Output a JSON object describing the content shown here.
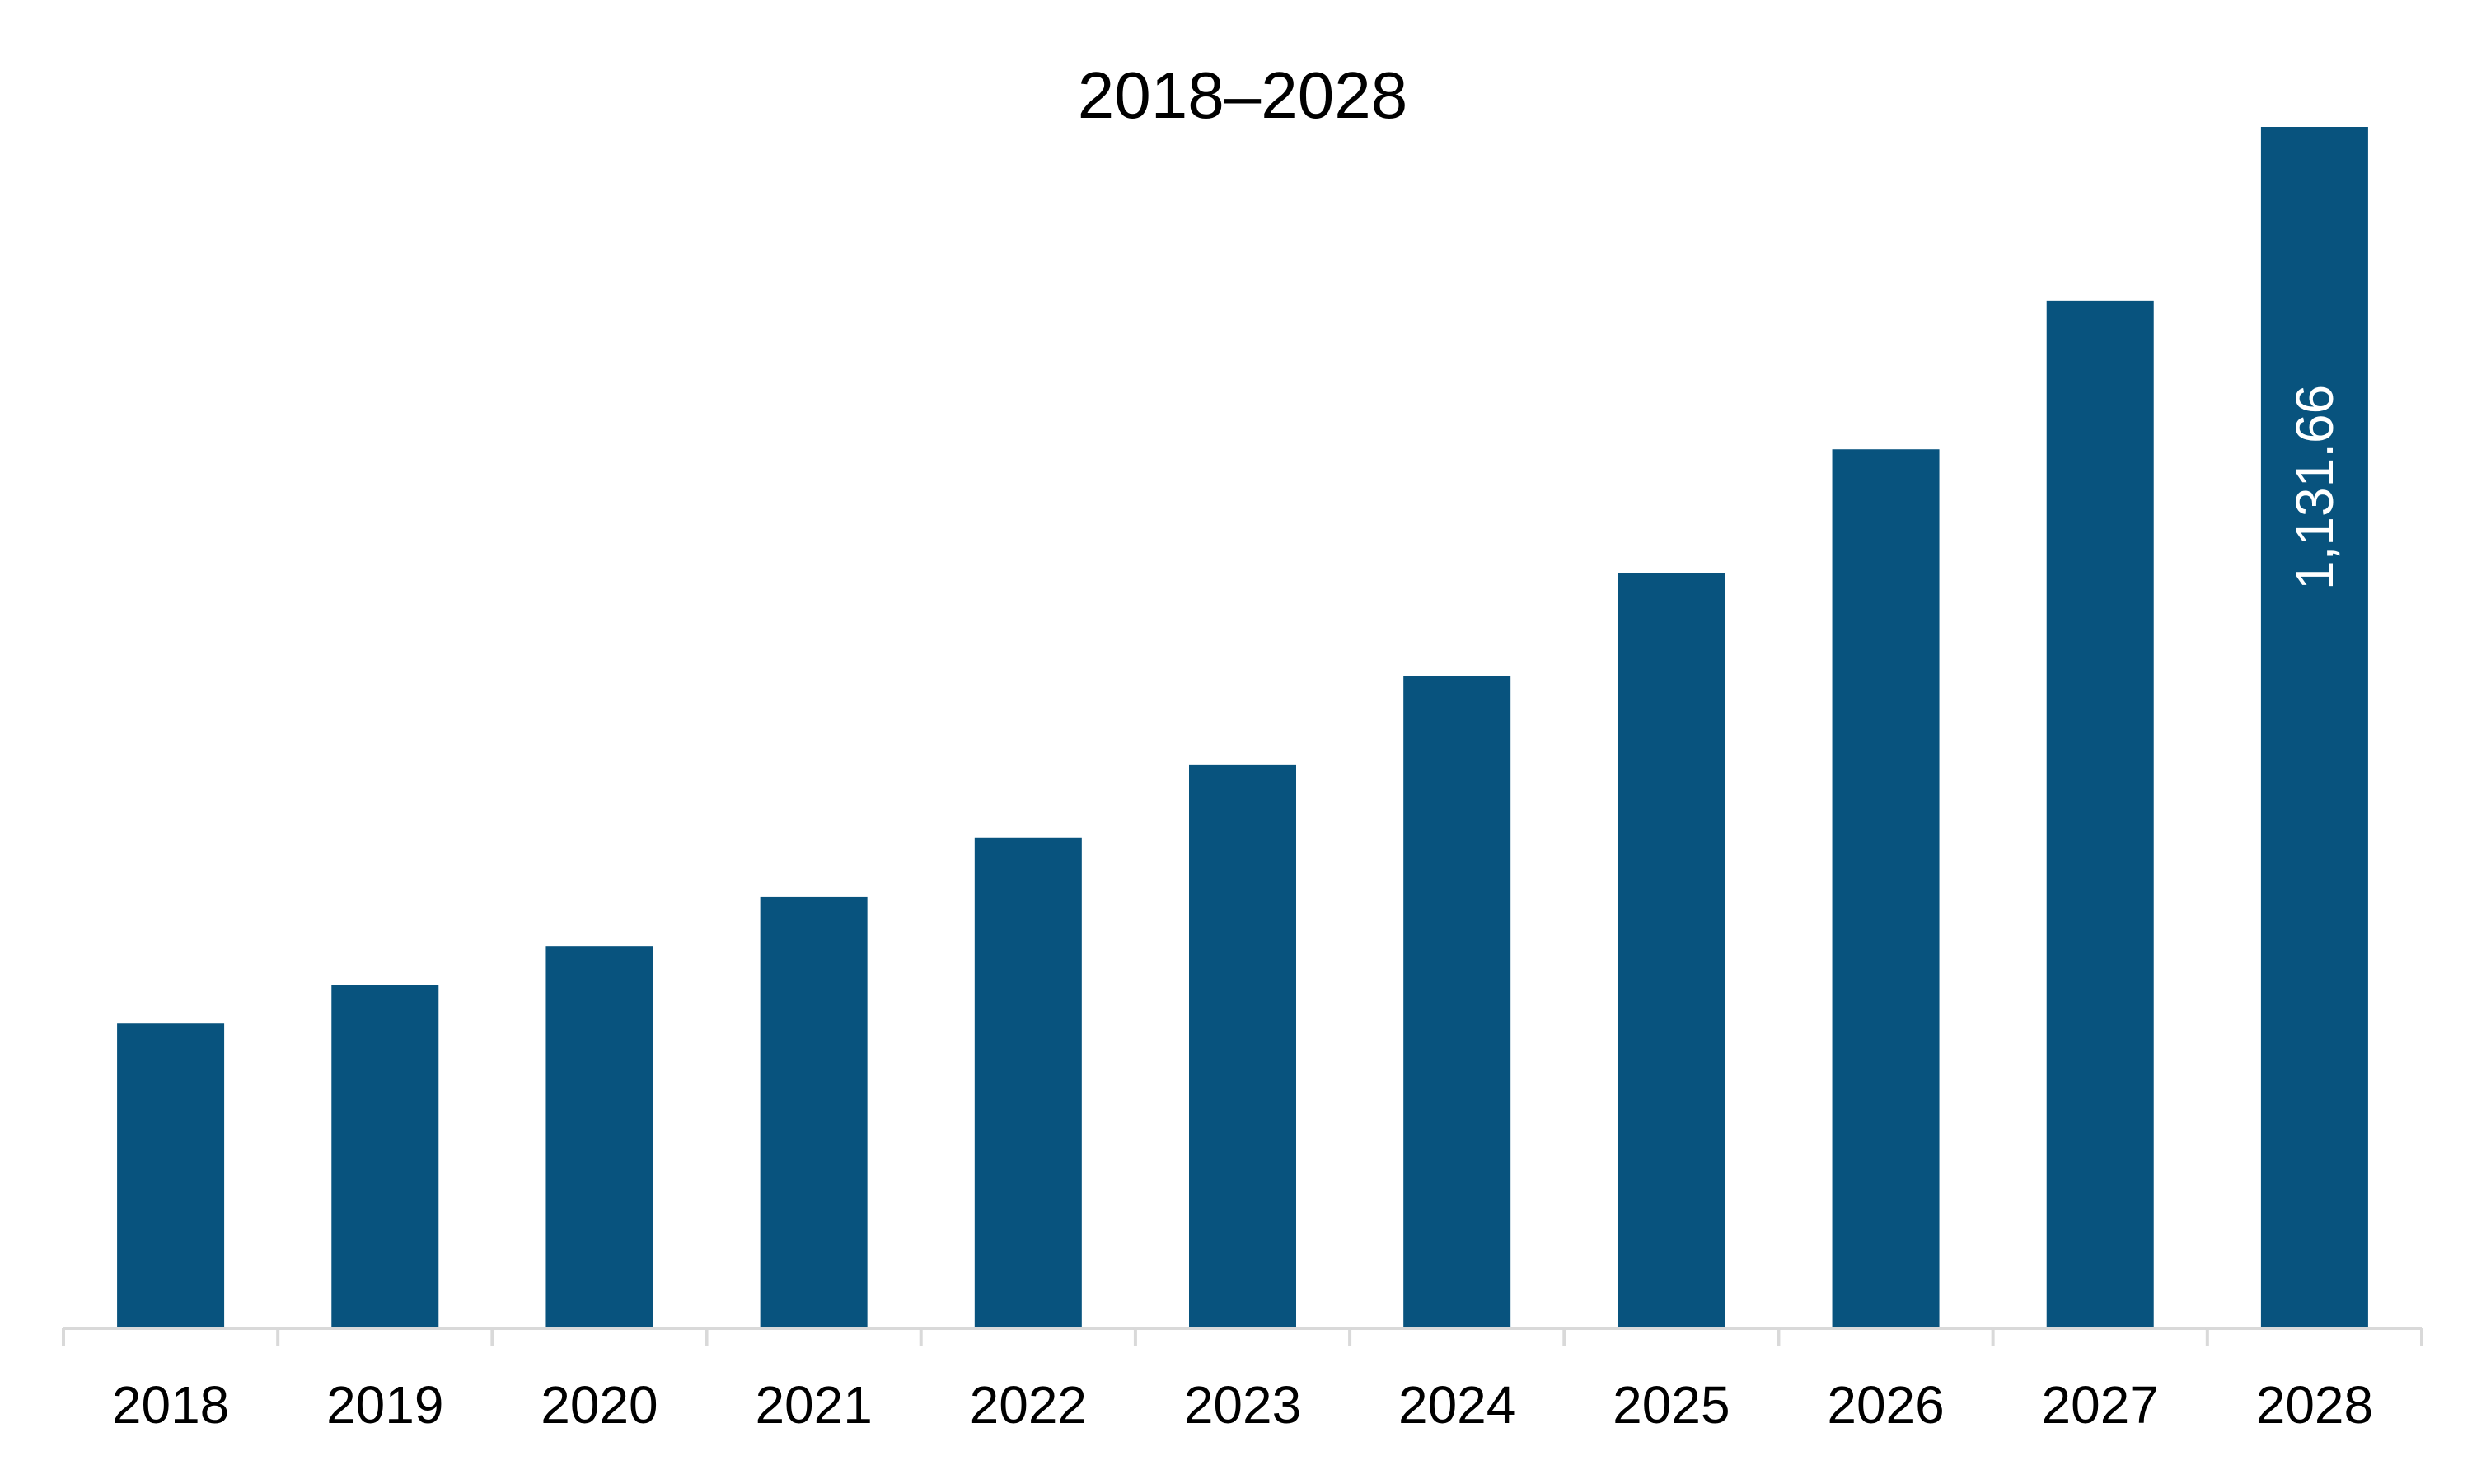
{
  "chart_data": {
    "type": "bar",
    "title": "2018–2028",
    "xlabel": "",
    "ylabel": "",
    "categories": [
      "2018",
      "2019",
      "2020",
      "2021",
      "2022",
      "2023",
      "2024",
      "2025",
      "2026",
      "2027",
      "2028"
    ],
    "values": [
      287,
      323,
      360,
      406,
      462,
      531,
      614,
      711,
      828,
      968,
      1131.66
    ],
    "ylim": [
      0,
      1131.66
    ],
    "data_labels": [
      {
        "index": 10,
        "text": "1,131.66",
        "orientation": "vertical"
      }
    ],
    "bar_color": "#08537e",
    "axis_color": "#d9d9d9",
    "grid": false,
    "legend": "none"
  }
}
